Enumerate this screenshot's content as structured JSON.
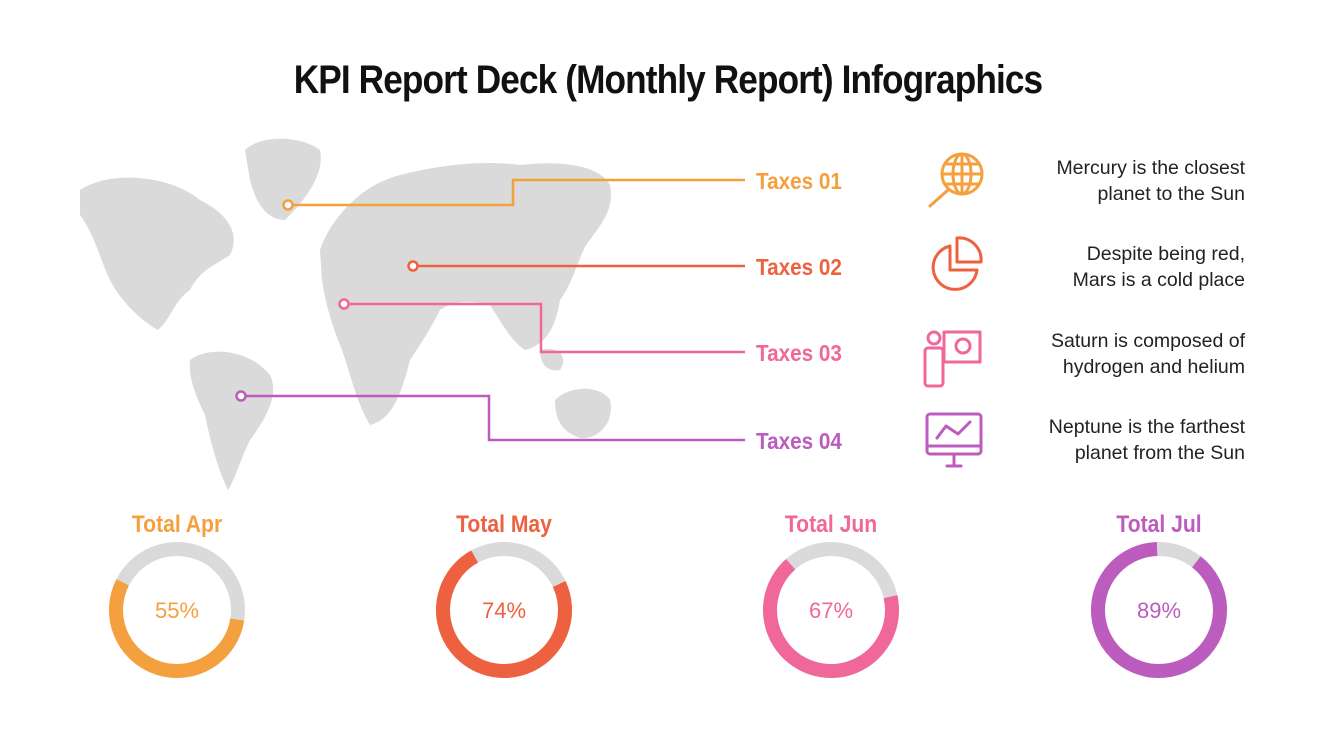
{
  "title": "KPI Report Deck (Monthly Report) Infographics",
  "colors": {
    "orange": "#F4A03E",
    "red": "#EE6140",
    "pink": "#F0679A",
    "purple": "#BC5CBE",
    "gray": "#DADADA"
  },
  "taxes": [
    {
      "label": "Taxes 01",
      "color": "#F4A03E"
    },
    {
      "label": "Taxes 02",
      "color": "#EE6140"
    },
    {
      "label": "Taxes 03",
      "color": "#F0679A"
    },
    {
      "label": "Taxes 04",
      "color": "#BC5CBE"
    }
  ],
  "facts": [
    {
      "icon": "globe-search-icon",
      "line1": "Mercury is the closest",
      "line2": "planet to the Sun"
    },
    {
      "icon": "pie-chart-icon",
      "line1": "Despite being red,",
      "line2": "Mars is a cold place"
    },
    {
      "icon": "presentation-icon",
      "line1": "Saturn is composed of",
      "line2": "hydrogen and helium"
    },
    {
      "icon": "monitor-chart-icon",
      "line1": "Neptune is the farthest",
      "line2": "planet from the Sun"
    }
  ],
  "totals": [
    {
      "label": "Total Apr",
      "value": 55,
      "text": "55%",
      "color": "#F4A03E"
    },
    {
      "label": "Total May",
      "value": 74,
      "text": "74%",
      "color": "#EE6140"
    },
    {
      "label": "Total Jun",
      "value": 67,
      "text": "67%",
      "color": "#F0679A"
    },
    {
      "label": "Total Jul",
      "value": 89,
      "text": "89%",
      "color": "#BC5CBE"
    }
  ]
}
